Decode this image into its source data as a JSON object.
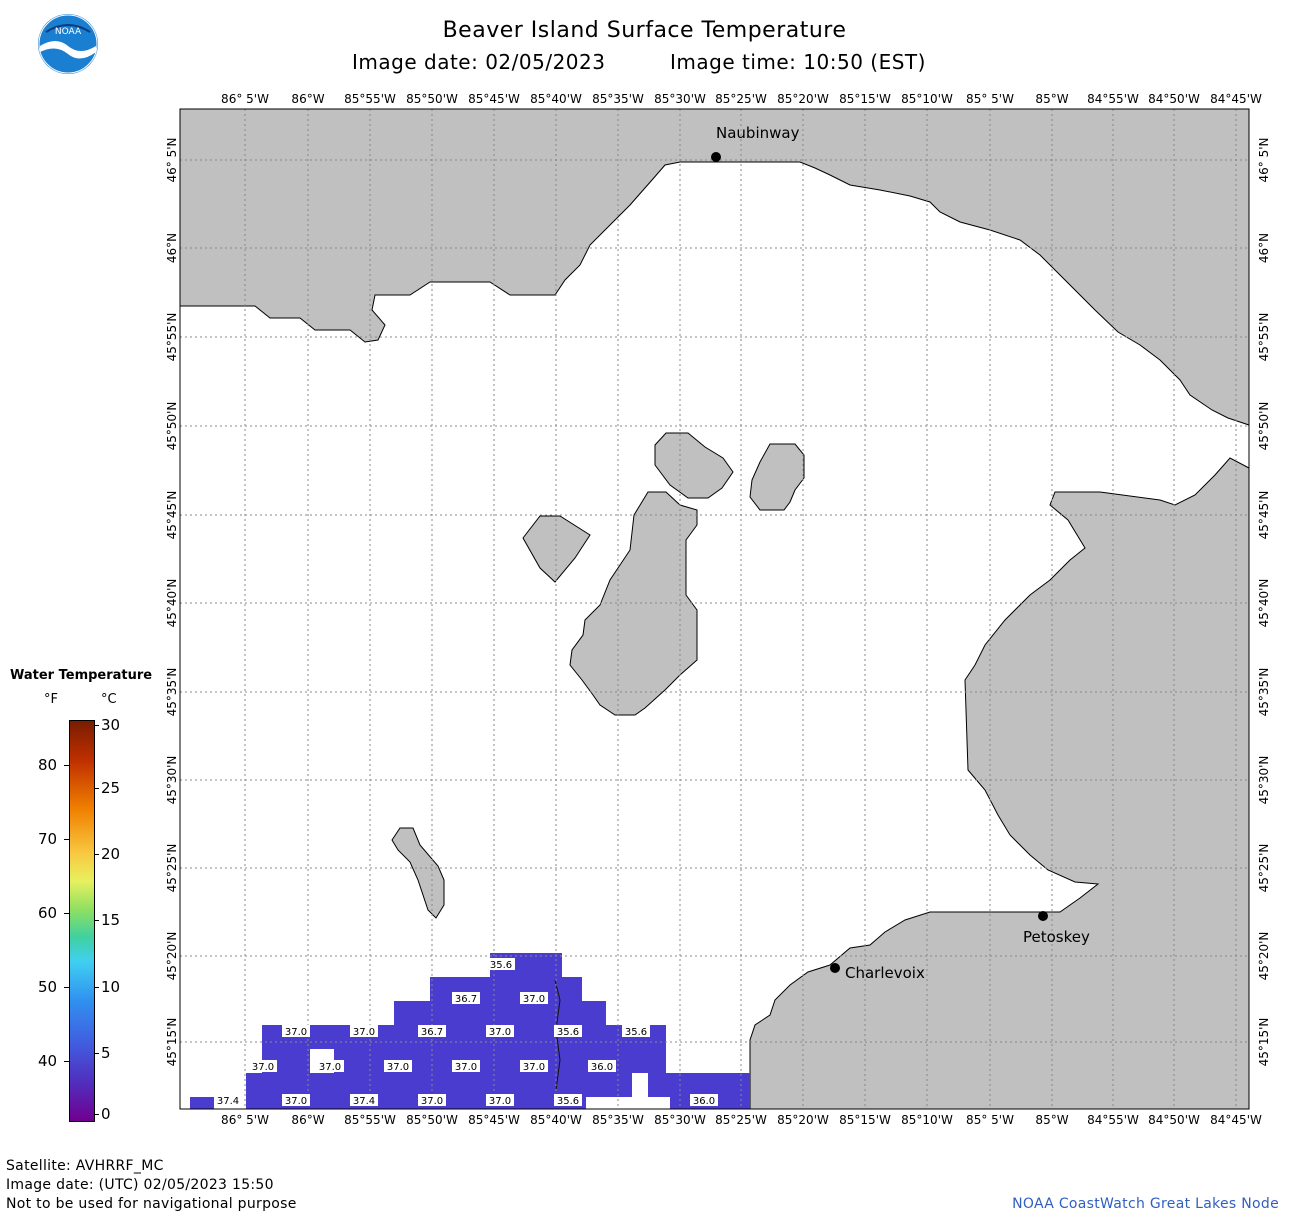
{
  "title": "Beaver Island Surface Temperature",
  "image_date_label": "Image date: 02/05/2023",
  "image_time_label": "Image time: 10:50 (EST)",
  "logo_text": "NOAA",
  "longitude_labels": [
    "86° 5'W",
    "86°W",
    "85°55'W",
    "85°50'W",
    "85°45'W",
    "85°40'W",
    "85°35'W",
    "85°30'W",
    "85°25'W",
    "85°20'W",
    "85°15'W",
    "85°10'W",
    "85° 5'W",
    "85°W",
    "84°55'W",
    "84°50'W",
    "84°45'W"
  ],
  "latitude_labels": [
    "46° 5'N",
    "46°N",
    "45°55'N",
    "45°50'N",
    "45°45'N",
    "45°40'N",
    "45°35'N",
    "45°30'N",
    "45°25'N",
    "45°20'N",
    "45°15'N"
  ],
  "cities": {
    "naubinway": "Naubinway",
    "charlevoix": "Charlevoix",
    "petoskey": "Petoskey"
  },
  "legend": {
    "title": "Water Temperature",
    "unit_f": "°F",
    "unit_c": "°C",
    "f_ticks": [
      "80",
      "70",
      "60",
      "50",
      "40"
    ],
    "c_ticks": [
      "30",
      "25",
      "20",
      "15",
      "10",
      "5",
      "0"
    ]
  },
  "temperature_labels": [
    {
      "label": "35.6",
      "temp": 35.6
    },
    {
      "label": "36.7",
      "temp": 36.7
    },
    {
      "label": "37.0",
      "temp": 37.0
    },
    {
      "label": "37.0",
      "temp": 37.0
    },
    {
      "label": "37.0",
      "temp": 37.0
    },
    {
      "label": "36.7",
      "temp": 36.7
    },
    {
      "label": "37.0",
      "temp": 37.0
    },
    {
      "label": "35.6",
      "temp": 35.6
    },
    {
      "label": "35.6",
      "temp": 35.6
    },
    {
      "label": "37.0",
      "temp": 37.0
    },
    {
      "label": "37.0",
      "temp": 37.0
    },
    {
      "label": "37.0",
      "temp": 37.0
    },
    {
      "label": "37.0",
      "temp": 37.0
    },
    {
      "label": "37.0",
      "temp": 37.0
    },
    {
      "label": "36.0",
      "temp": 36.0
    },
    {
      "label": "37.4",
      "temp": 37.4
    },
    {
      "label": "37.0",
      "temp": 37.0
    },
    {
      "label": "37.4",
      "temp": 37.4
    },
    {
      "label": "37.0",
      "temp": 37.0
    },
    {
      "label": "37.0",
      "temp": 37.0
    },
    {
      "label": "35.6",
      "temp": 35.6
    },
    {
      "label": "36.0",
      "temp": 36.0
    }
  ],
  "colors": {
    "land": "#c0c0c0",
    "water_temp": "#4a3ccf",
    "grid": "#888888",
    "credit": "#3060c0"
  },
  "footer": {
    "satellite": "Satellite: AVHRRF_MC",
    "utc_date": "Image date: (UTC) 02/05/2023  15:50",
    "disclaimer": "Not to be used for navigational purpose",
    "credit": "NOAA CoastWatch Great Lakes Node"
  }
}
